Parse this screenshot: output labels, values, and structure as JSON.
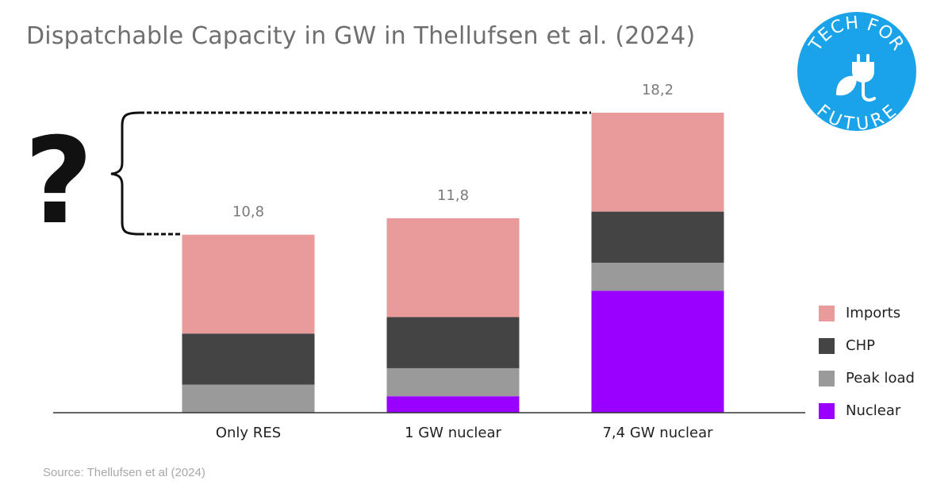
{
  "title": "Dispatchable Capacity in GW in Thellufsen et al. (2024)",
  "source": "Source: Thellufsen et al (2024)",
  "annotation": {
    "symbol": "?"
  },
  "logo": {
    "text_top": "TECH FOR",
    "text_bottom": "FUTURE",
    "icon": "plug-leaf-icon",
    "color": "#1aa3e8"
  },
  "colors": {
    "Imports": "#e99a9a",
    "CHP": "#444444",
    "Peak load": "#9a9a9a",
    "Nuclear": "#9900ff"
  },
  "legend": {
    "items": [
      {
        "label": "Imports",
        "color": "#e99a9a"
      },
      {
        "label": "CHP",
        "color": "#444444"
      },
      {
        "label": "Peak load",
        "color": "#9a9a9a"
      },
      {
        "label": "Nuclear",
        "color": "#9900ff"
      }
    ]
  },
  "chart_data": {
    "type": "bar",
    "stacked": true,
    "title": "Dispatchable Capacity in GW in Thellufsen et al. (2024)",
    "xlabel": "",
    "ylabel": "",
    "ylim": [
      0,
      18.2
    ],
    "grid": false,
    "legend_position": "right",
    "categories": [
      "Only RES",
      "1 GW nuclear",
      "7,4 GW nuclear"
    ],
    "totals": [
      "10,8",
      "11,8",
      "18,2"
    ],
    "series": [
      {
        "name": "Nuclear",
        "values": [
          0,
          1.0,
          7.4
        ]
      },
      {
        "name": "Peak load",
        "values": [
          1.7,
          1.7,
          1.7
        ]
      },
      {
        "name": "CHP",
        "values": [
          3.1,
          3.1,
          3.1
        ]
      },
      {
        "name": "Imports",
        "values": [
          6.0,
          6.0,
          6.0
        ]
      }
    ]
  }
}
